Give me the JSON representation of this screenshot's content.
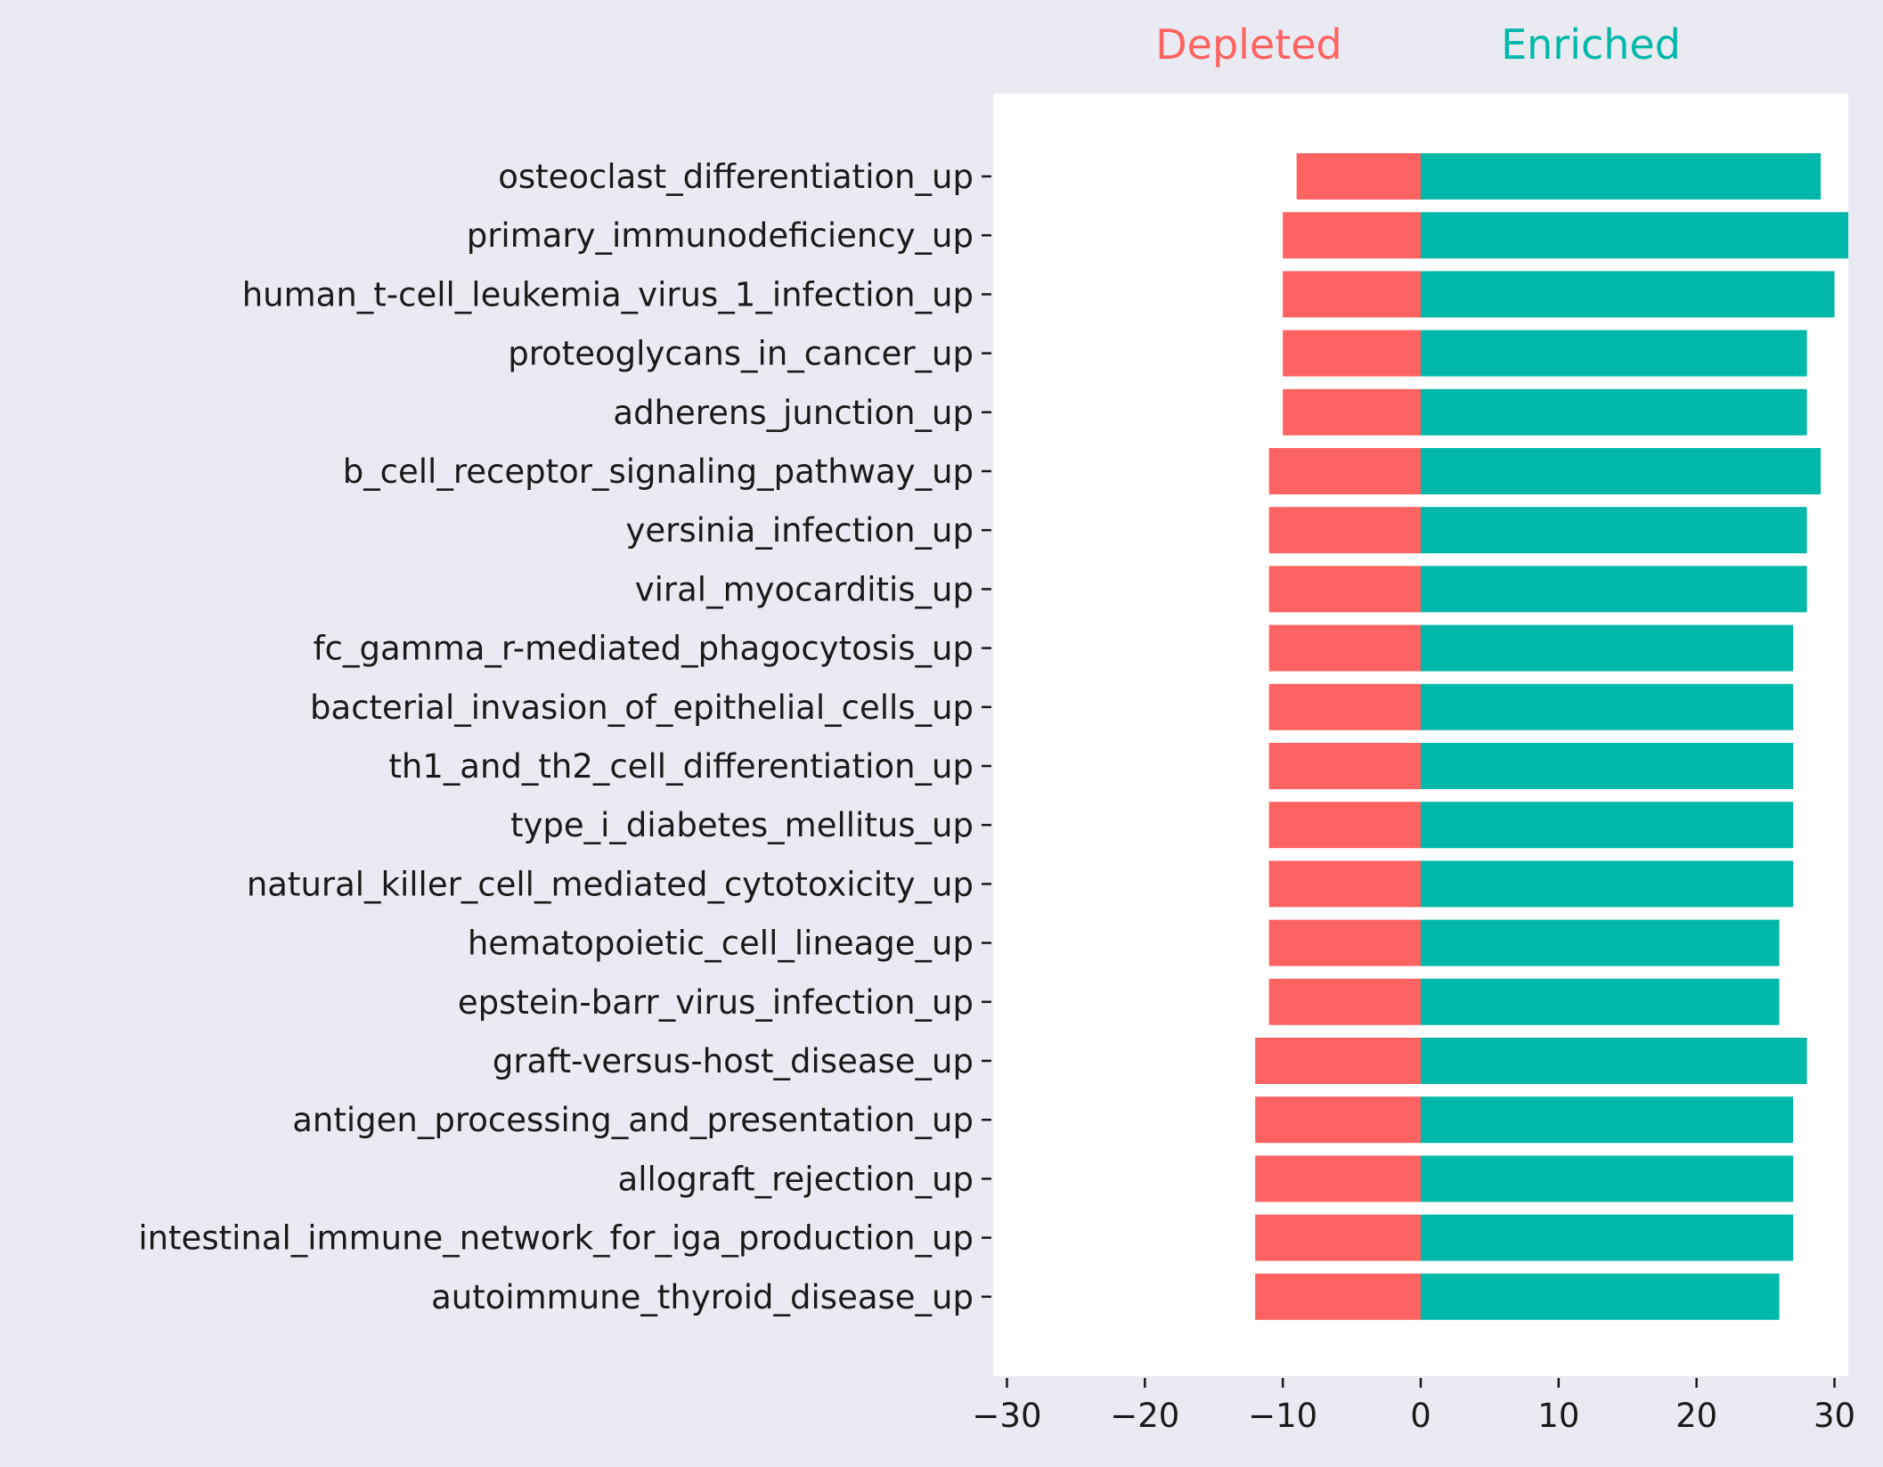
{
  "colors": {
    "page_background": "#eaeaf2",
    "plot_background": "#ffffff",
    "depleted": "#ff6361",
    "enriched": "#00b8a9",
    "text": "#1a1a1a"
  },
  "legend": {
    "depleted_label": "Depleted",
    "enriched_label": "Enriched"
  },
  "chart_data": {
    "type": "bar",
    "orientation": "horizontal",
    "stacked_diverging": true,
    "categories": [
      "osteoclast_differentiation_up",
      "primary_immunodeficiency_up",
      "human_t-cell_leukemia_virus_1_infection_up",
      "proteoglycans_in_cancer_up",
      "adherens_junction_up",
      "b_cell_receptor_signaling_pathway_up",
      "yersinia_infection_up",
      "viral_myocarditis_up",
      "fc_gamma_r-mediated_phagocytosis_up",
      "bacterial_invasion_of_epithelial_cells_up",
      "th1_and_th2_cell_differentiation_up",
      "type_i_diabetes_mellitus_up",
      "natural_killer_cell_mediated_cytotoxicity_up",
      "hematopoietic_cell_lineage_up",
      "epstein-barr_virus_infection_up",
      "graft-versus-host_disease_up",
      "antigen_processing_and_presentation_up",
      "allograft_rejection_up",
      "intestinal_immune_network_for_iga_production_up",
      "autoimmune_thyroid_disease_up"
    ],
    "series": [
      {
        "name": "Depleted",
        "values": [
          -9,
          -10,
          -10,
          -10,
          -10,
          -11,
          -11,
          -11,
          -11,
          -11,
          -11,
          -11,
          -11,
          -11,
          -11,
          -12,
          -12,
          -12,
          -12,
          -12
        ]
      },
      {
        "name": "Enriched",
        "values": [
          29,
          31,
          30,
          28,
          28,
          29,
          28,
          28,
          27,
          27,
          27,
          27,
          27,
          26,
          26,
          28,
          27,
          27,
          27,
          26
        ]
      }
    ],
    "x_ticks": [
      -30,
      -20,
      -10,
      0,
      10,
      20,
      30
    ],
    "x_tick_labels": [
      "−30",
      "−20",
      "−10",
      "0",
      "10",
      "20",
      "30"
    ],
    "xlim": [
      -31,
      31
    ],
    "title": "",
    "xlabel": "",
    "ylabel": "",
    "grid": false,
    "legend_position": "top"
  }
}
